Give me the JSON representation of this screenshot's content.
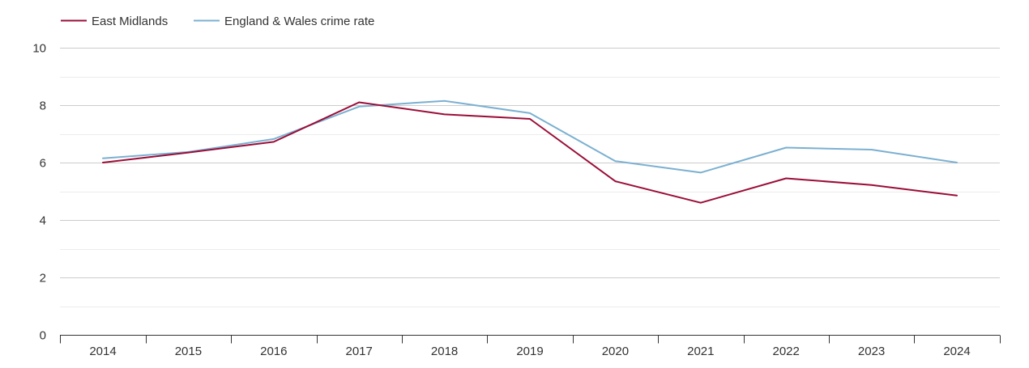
{
  "chart_data": {
    "type": "line",
    "title": "",
    "xlabel": "",
    "ylabel": "",
    "x": [
      "2014",
      "2015",
      "2016",
      "2017",
      "2018",
      "2019",
      "2020",
      "2021",
      "2022",
      "2023",
      "2024"
    ],
    "ylim": [
      0,
      10
    ],
    "yticks": [
      0,
      2,
      4,
      6,
      8,
      10
    ],
    "grid": true,
    "legend_position": "top-left",
    "series": [
      {
        "name": "East Midlands",
        "color": "#9b0d37",
        "values": [
          6.0,
          6.35,
          6.72,
          8.1,
          7.68,
          7.52,
          5.35,
          4.6,
          5.45,
          5.22,
          4.85
        ]
      },
      {
        "name": "England & Wales crime rate",
        "color": "#7bb0d1",
        "values": [
          6.15,
          6.37,
          6.82,
          7.95,
          8.15,
          7.72,
          6.05,
          5.65,
          6.52,
          6.45,
          6.0
        ]
      }
    ]
  }
}
